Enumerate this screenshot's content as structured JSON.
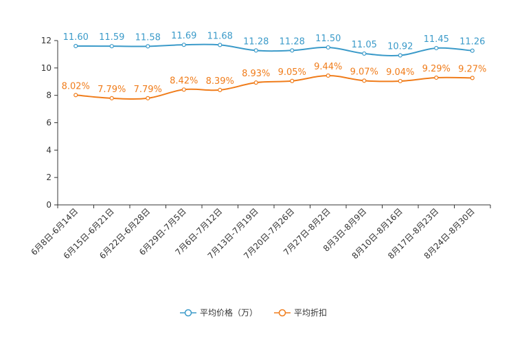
{
  "chart_data": {
    "type": "line",
    "title": "",
    "xlabel": "",
    "ylabel": "",
    "ylim": [
      0,
      12
    ],
    "yticks": [
      0,
      2,
      4,
      6,
      8,
      10,
      12
    ],
    "yticks_text": [
      "0",
      "2",
      "4",
      "6",
      "8",
      "10",
      "12"
    ],
    "grid": false,
    "legend_position": "bottom-center",
    "categories": [
      "6月8日-6月14日",
      "6月15日-6月21日",
      "6月22日-6月28日",
      "6月29日-7月5日",
      "7月6日-7月12日",
      "7月13日-7月19日",
      "7月20日-7月26日",
      "7月27日-8月2日",
      "8月3日-8月9日",
      "8月10日-8月16日",
      "8月17日-8月23日",
      "8月24日-8月30日"
    ],
    "series": [
      {
        "name": "平均价格（万）",
        "color": "#3a9ac9",
        "values": [
          11.6,
          11.59,
          11.58,
          11.69,
          11.68,
          11.28,
          11.28,
          11.5,
          11.05,
          10.92,
          11.45,
          11.26
        ],
        "labels": [
          "11.60",
          "11.59",
          "11.58",
          "11.69",
          "11.68",
          "11.28",
          "11.28",
          "11.50",
          "11.05",
          "10.92",
          "11.45",
          "11.26"
        ]
      },
      {
        "name": "平均折扣",
        "color": "#f07c1a",
        "values": [
          8.02,
          7.79,
          7.79,
          8.42,
          8.39,
          8.93,
          9.05,
          9.44,
          9.07,
          9.04,
          9.29,
          9.27
        ],
        "labels": [
          "8.02%",
          "7.79%",
          "7.79%",
          "8.42%",
          "8.39%",
          "8.93%",
          "9.05%",
          "9.44%",
          "9.07%",
          "9.04%",
          "9.29%",
          "9.27%"
        ]
      }
    ]
  }
}
